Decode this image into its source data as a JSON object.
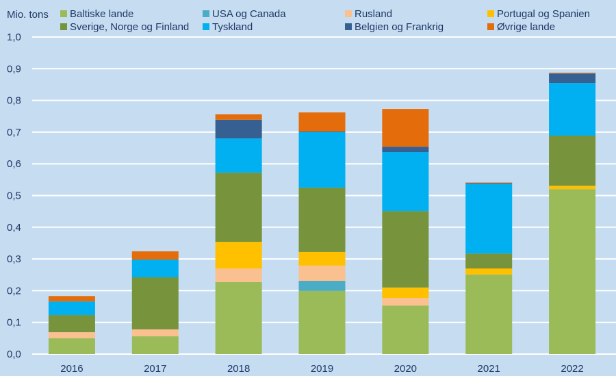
{
  "chart_data": {
    "type": "bar",
    "stacked": true,
    "title": "",
    "ylabel": "Mio. tons",
    "xlabel": "",
    "ylim": [
      0,
      1.0
    ],
    "yticks": [
      "0,0",
      "0,1",
      "0,2",
      "0,3",
      "0,4",
      "0,5",
      "0,6",
      "0,7",
      "0,8",
      "0,9",
      "1,0"
    ],
    "ytick_values": [
      0,
      0.1,
      0.2,
      0.3,
      0.4,
      0.5,
      0.6,
      0.7,
      0.8,
      0.9,
      1.0
    ],
    "grid": true,
    "legend_position": "top",
    "categories": [
      "2016",
      "2017",
      "2018",
      "2019",
      "2020",
      "2021",
      "2022"
    ],
    "series": [
      {
        "name": "Baltiske lande",
        "color": "#9bbb59",
        "values": [
          0.05,
          0.056,
          0.227,
          0.199,
          0.153,
          0.251,
          0.52
        ]
      },
      {
        "name": "USA og Canada",
        "color": "#4bacc6",
        "values": [
          0.0,
          0.0,
          0.0,
          0.032,
          0.0,
          0.0,
          0.0
        ]
      },
      {
        "name": "Rusland",
        "color": "#fac090",
        "values": [
          0.019,
          0.022,
          0.043,
          0.048,
          0.024,
          0.0,
          0.0
        ]
      },
      {
        "name": "Portugal og Spanien",
        "color": "#ffc000",
        "values": [
          0.0,
          0.0,
          0.084,
          0.043,
          0.033,
          0.019,
          0.011
        ]
      },
      {
        "name": "Sverige, Norge og Finland",
        "color": "#77933c",
        "values": [
          0.054,
          0.164,
          0.218,
          0.203,
          0.241,
          0.047,
          0.158
        ]
      },
      {
        "name": "Tyskland",
        "color": "#00b0f0",
        "values": [
          0.043,
          0.056,
          0.108,
          0.175,
          0.186,
          0.22,
          0.166
        ]
      },
      {
        "name": "Belgien og Frankrig",
        "color": "#366092",
        "values": [
          0.0,
          0.0,
          0.059,
          0.002,
          0.017,
          0.002,
          0.03
        ]
      },
      {
        "name": "Øvrige lande",
        "color": "#e46c0a",
        "values": [
          0.017,
          0.026,
          0.017,
          0.06,
          0.119,
          0.002,
          0.002
        ]
      }
    ]
  },
  "legend": {
    "items": [
      {
        "label": "Baltiske lande",
        "color": "#9bbb59"
      },
      {
        "label": "USA og Canada",
        "color": "#4bacc6"
      },
      {
        "label": "Rusland",
        "color": "#fac090"
      },
      {
        "label": "Portugal og Spanien",
        "color": "#ffc000"
      },
      {
        "label": "Sverige, Norge og Finland",
        "color": "#77933c"
      },
      {
        "label": "Tyskland",
        "color": "#00b0f0"
      },
      {
        "label": "Belgien og Frankrig",
        "color": "#366092"
      },
      {
        "label": "Øvrige lande",
        "color": "#e46c0a"
      }
    ]
  },
  "colors": {
    "background": "#c5dcf1",
    "gridline": "#ffffff",
    "text": "#1f3864"
  }
}
